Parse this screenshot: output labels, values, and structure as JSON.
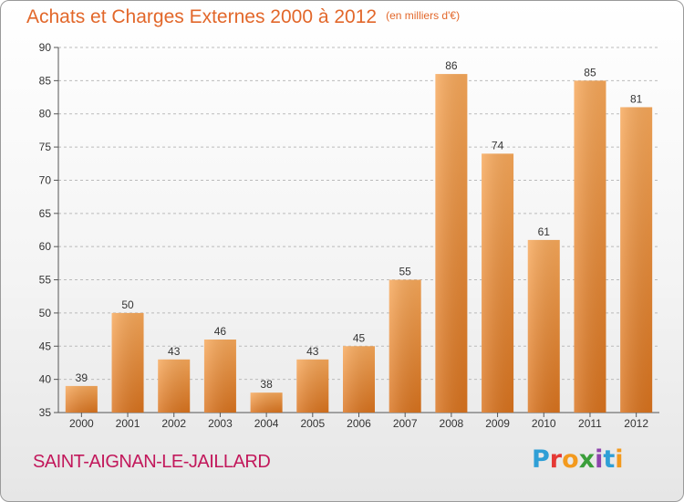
{
  "title": "Achats et Charges Externes 2000 à 2012",
  "title_unit": "(en milliers d'€)",
  "city": "SAINT-AIGNAN-LE-JAILLARD",
  "brand": "Proxiti",
  "colors": {
    "title": "#e2672a",
    "city": "#c2185b",
    "bar_light": "#f7a85a",
    "bar_dark": "#d9731e",
    "grid": "#bbbbbb"
  },
  "chart_data": {
    "type": "bar",
    "title": "Achats et Charges Externes 2000 à 2012",
    "subtitle": "(en milliers d'€)",
    "xlabel": "",
    "ylabel": "",
    "categories": [
      "2000",
      "2001",
      "2002",
      "2003",
      "2004",
      "2005",
      "2006",
      "2007",
      "2008",
      "2009",
      "2010",
      "2011",
      "2012"
    ],
    "values": [
      39,
      50,
      43,
      46,
      38,
      43,
      45,
      55,
      86,
      74,
      61,
      85,
      81
    ],
    "ylim": [
      35,
      90
    ],
    "yticks": [
      35,
      40,
      45,
      50,
      55,
      60,
      65,
      70,
      75,
      80,
      85,
      90
    ],
    "grid": true,
    "data_labels": true
  }
}
